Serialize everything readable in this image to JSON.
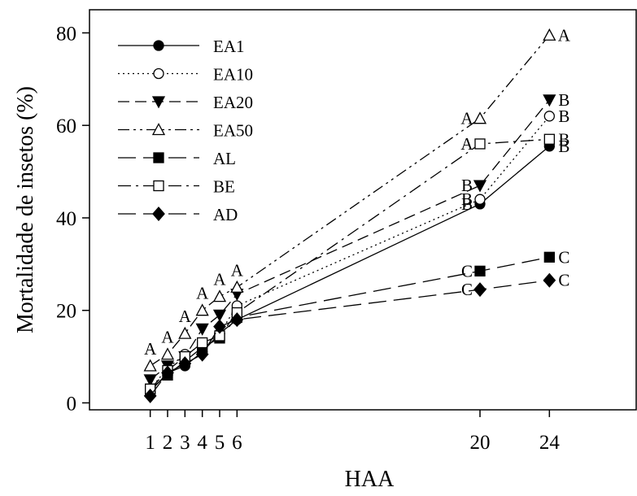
{
  "chart_data": {
    "type": "line",
    "xlabel": "HAA",
    "ylabel": "Mortalidade de insetos (%)",
    "xlim": [
      -2.5,
      29
    ],
    "ylim": [
      -1.5,
      85
    ],
    "x": [
      1,
      2,
      3,
      4,
      5,
      6,
      20,
      24
    ],
    "x_ticks": [
      1,
      2,
      3,
      4,
      5,
      6,
      20,
      24
    ],
    "y_ticks": [
      0,
      20,
      40,
      60,
      80
    ],
    "legend_position": "top-left",
    "grid": false,
    "series": [
      {
        "name": "EA1",
        "marker": "circle-filled",
        "dash": "solid",
        "values": [
          2.5,
          6.5,
          8,
          11,
          15,
          18,
          43,
          55.5
        ]
      },
      {
        "name": "EA10",
        "marker": "circle-open",
        "dash": "dotted",
        "values": [
          3,
          7.5,
          10.5,
          12.5,
          15,
          21,
          44,
          62
        ]
      },
      {
        "name": "EA20",
        "marker": "triangle-down",
        "dash": "dashed",
        "values": [
          5,
          8,
          10,
          16,
          19,
          23.5,
          47,
          65.5
        ]
      },
      {
        "name": "EA50",
        "marker": "triangle-open",
        "dash": "dash-dot-dot",
        "values": [
          8,
          10.5,
          15,
          20,
          23,
          25,
          61.5,
          79.5
        ]
      },
      {
        "name": "AL",
        "marker": "square-filled",
        "dash": "long-dash",
        "values": [
          3,
          6,
          9,
          12,
          14,
          18.5,
          28.5,
          31.5
        ]
      },
      {
        "name": "BE",
        "marker": "square-open",
        "dash": "dash-dot",
        "values": [
          3,
          7,
          10,
          13,
          14.5,
          19.5,
          56,
          57
        ]
      },
      {
        "name": "AD",
        "marker": "diamond-filled",
        "dash": "long-dash",
        "values": [
          1.5,
          6.5,
          8.5,
          10.5,
          16.5,
          18,
          24.5,
          26.5
        ]
      }
    ],
    "annotations": [
      {
        "x": 1,
        "y": 8,
        "text": "A"
      },
      {
        "x": 2,
        "y": 10.5,
        "text": "A"
      },
      {
        "x": 3,
        "y": 15,
        "text": "A"
      },
      {
        "x": 4,
        "y": 20,
        "text": "A"
      },
      {
        "x": 5,
        "y": 23,
        "text": "A"
      },
      {
        "x": 6,
        "y": 25,
        "text": "A"
      },
      {
        "x": 20,
        "y": 61.5,
        "text": "A"
      },
      {
        "x": 20,
        "y": 56,
        "text": "A"
      },
      {
        "x": 20,
        "y": 47,
        "text": "B"
      },
      {
        "x": 20,
        "y": 44,
        "text": "B"
      },
      {
        "x": 20,
        "y": 43,
        "text": "B"
      },
      {
        "x": 20,
        "y": 28.5,
        "text": "C"
      },
      {
        "x": 20,
        "y": 24.5,
        "text": "C"
      },
      {
        "x": 24,
        "y": 79.5,
        "text": "A"
      },
      {
        "x": 24,
        "y": 65.5,
        "text": "B"
      },
      {
        "x": 24,
        "y": 62,
        "text": "B"
      },
      {
        "x": 24,
        "y": 57,
        "text": "B"
      },
      {
        "x": 24,
        "y": 55.5,
        "text": "B"
      },
      {
        "x": 24,
        "y": 31.5,
        "text": "C"
      },
      {
        "x": 24,
        "y": 26.5,
        "text": "C"
      }
    ]
  }
}
